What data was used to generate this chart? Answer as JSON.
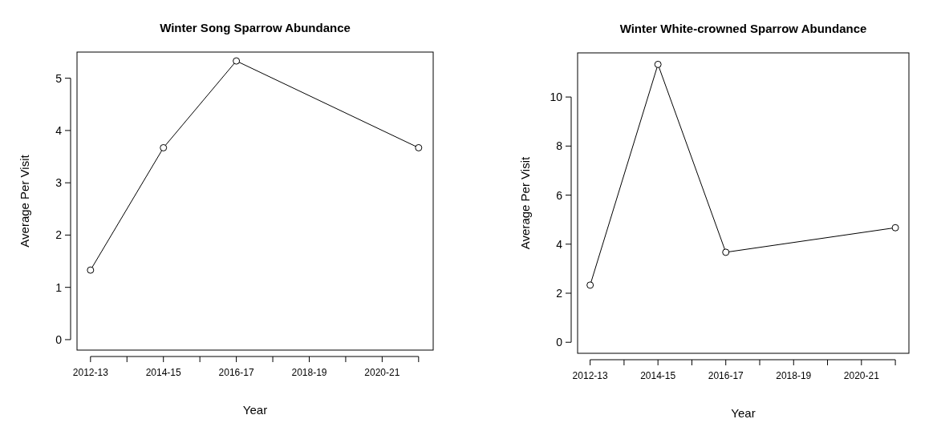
{
  "chart_data": [
    {
      "type": "line",
      "title": "Winter Song Sparrow Abundance",
      "xlabel": "Year",
      "ylabel": "Average Per Visit",
      "categories": [
        "2012-13",
        null,
        "2014-15",
        null,
        "2016-17",
        null,
        "2018-19",
        null,
        "2020-21",
        null
      ],
      "values": [
        1.33,
        null,
        3.67,
        null,
        5.33,
        null,
        null,
        null,
        null,
        3.67
      ],
      "color": "#000000",
      "marker": "circle",
      "line_style": "solid",
      "ylim": [
        -0.2,
        5.5
      ],
      "yticks": [
        0,
        1,
        2,
        3,
        4,
        5
      ]
    },
    {
      "type": "line",
      "title": "Winter White-crowned Sparrow Abundance",
      "xlabel": "Year",
      "ylabel": "Average Per Visit",
      "categories": [
        "2012-13",
        null,
        "2014-15",
        null,
        "2016-17",
        null,
        "2018-19",
        null,
        "2020-21",
        null
      ],
      "values": [
        2.33,
        null,
        11.33,
        null,
        3.67,
        null,
        null,
        null,
        null,
        4.67
      ],
      "color": "#000000",
      "marker": "circle",
      "line_style": "solid",
      "ylim": [
        -0.45,
        11.8
      ],
      "yticks": [
        0,
        2,
        4,
        6,
        8,
        10
      ]
    }
  ]
}
